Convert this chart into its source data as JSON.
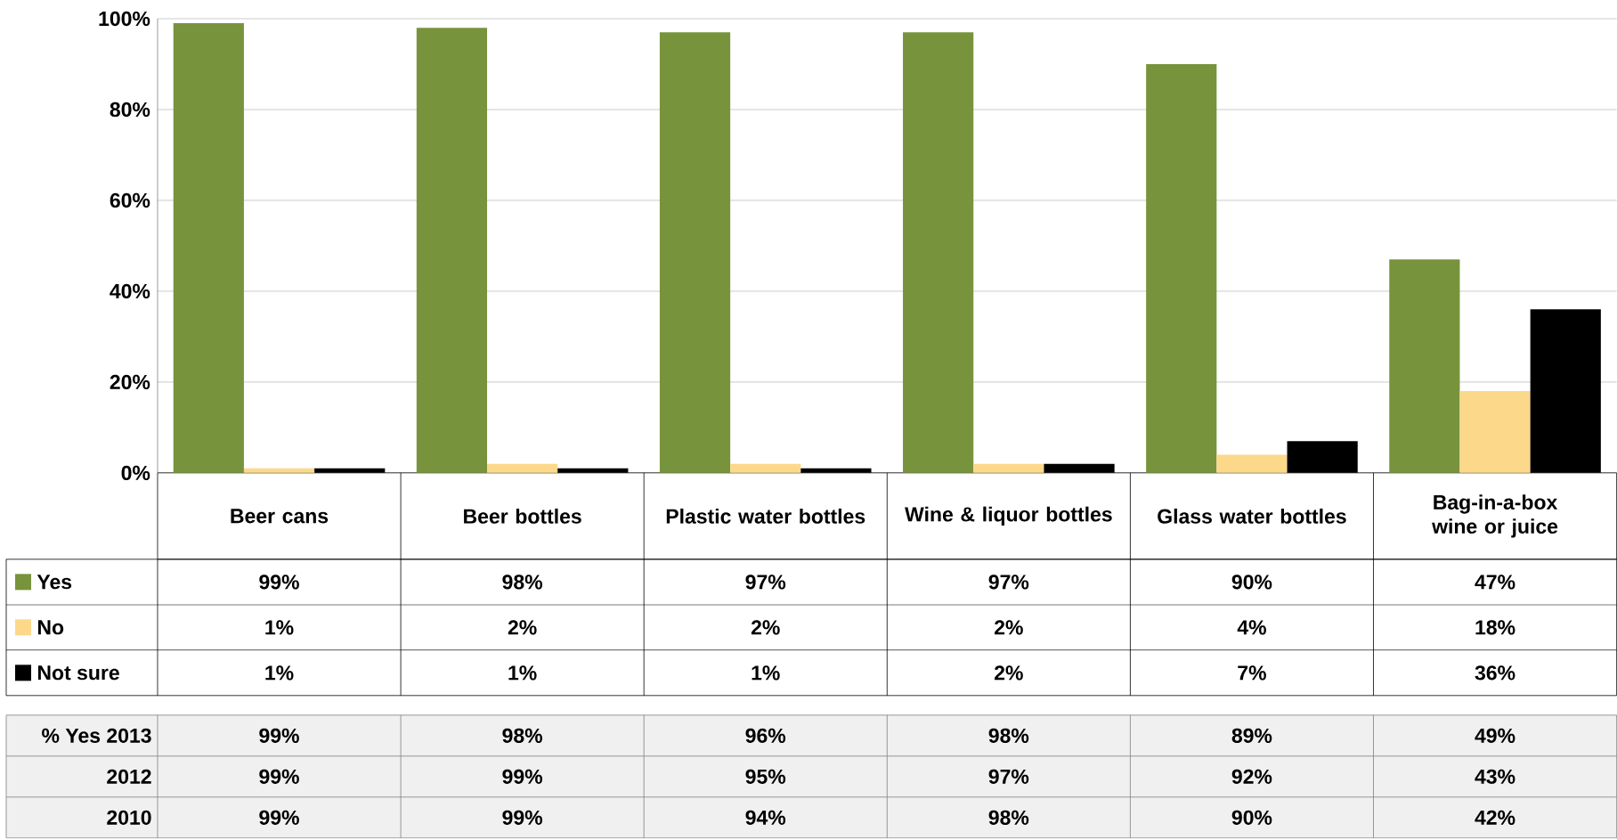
{
  "chart_data": {
    "type": "bar",
    "categories": [
      "Beer cans",
      "Beer bottles",
      "Plastic water bottles",
      "Wine & liquor bottles",
      "Glass water bottles",
      "Bag-in-a-box wine or juice"
    ],
    "series": [
      {
        "name": "Yes",
        "color": "#77933c",
        "values": [
          99,
          98,
          97,
          97,
          90,
          47
        ],
        "value_labels": [
          "99%",
          "98%",
          "97%",
          "97%",
          "90%",
          "47%"
        ]
      },
      {
        "name": "No",
        "color": "#fcd88a",
        "values": [
          1,
          2,
          2,
          2,
          4,
          18
        ],
        "value_labels": [
          "1%",
          "2%",
          "2%",
          "2%",
          "4%",
          "18%"
        ]
      },
      {
        "name": "Not sure",
        "color": "#000000",
        "values": [
          1,
          1,
          1,
          2,
          7,
          36
        ],
        "value_labels": [
          "1%",
          "1%",
          "1%",
          "2%",
          "7%",
          "36%"
        ]
      }
    ],
    "ylim": [
      0,
      100
    ],
    "yticks": [
      {
        "value": 0,
        "label": "0%"
      },
      {
        "value": 20,
        "label": "20%"
      },
      {
        "value": 40,
        "label": "40%"
      },
      {
        "value": 60,
        "label": "60%"
      },
      {
        "value": 80,
        "label": "80%"
      },
      {
        "value": 100,
        "label": "100%"
      }
    ],
    "grid": "y",
    "legend": "bottom left",
    "annotations": [
      "% Yes 2013",
      "99%",
      "98%",
      "96%",
      "98%",
      "89%",
      "49%",
      "2012",
      "99%",
      "99%",
      "95%",
      "97%",
      "92%",
      "43%",
      "2010",
      "99%",
      "99%",
      "94%",
      "98%",
      "90%",
      "42%"
    ]
  }
}
